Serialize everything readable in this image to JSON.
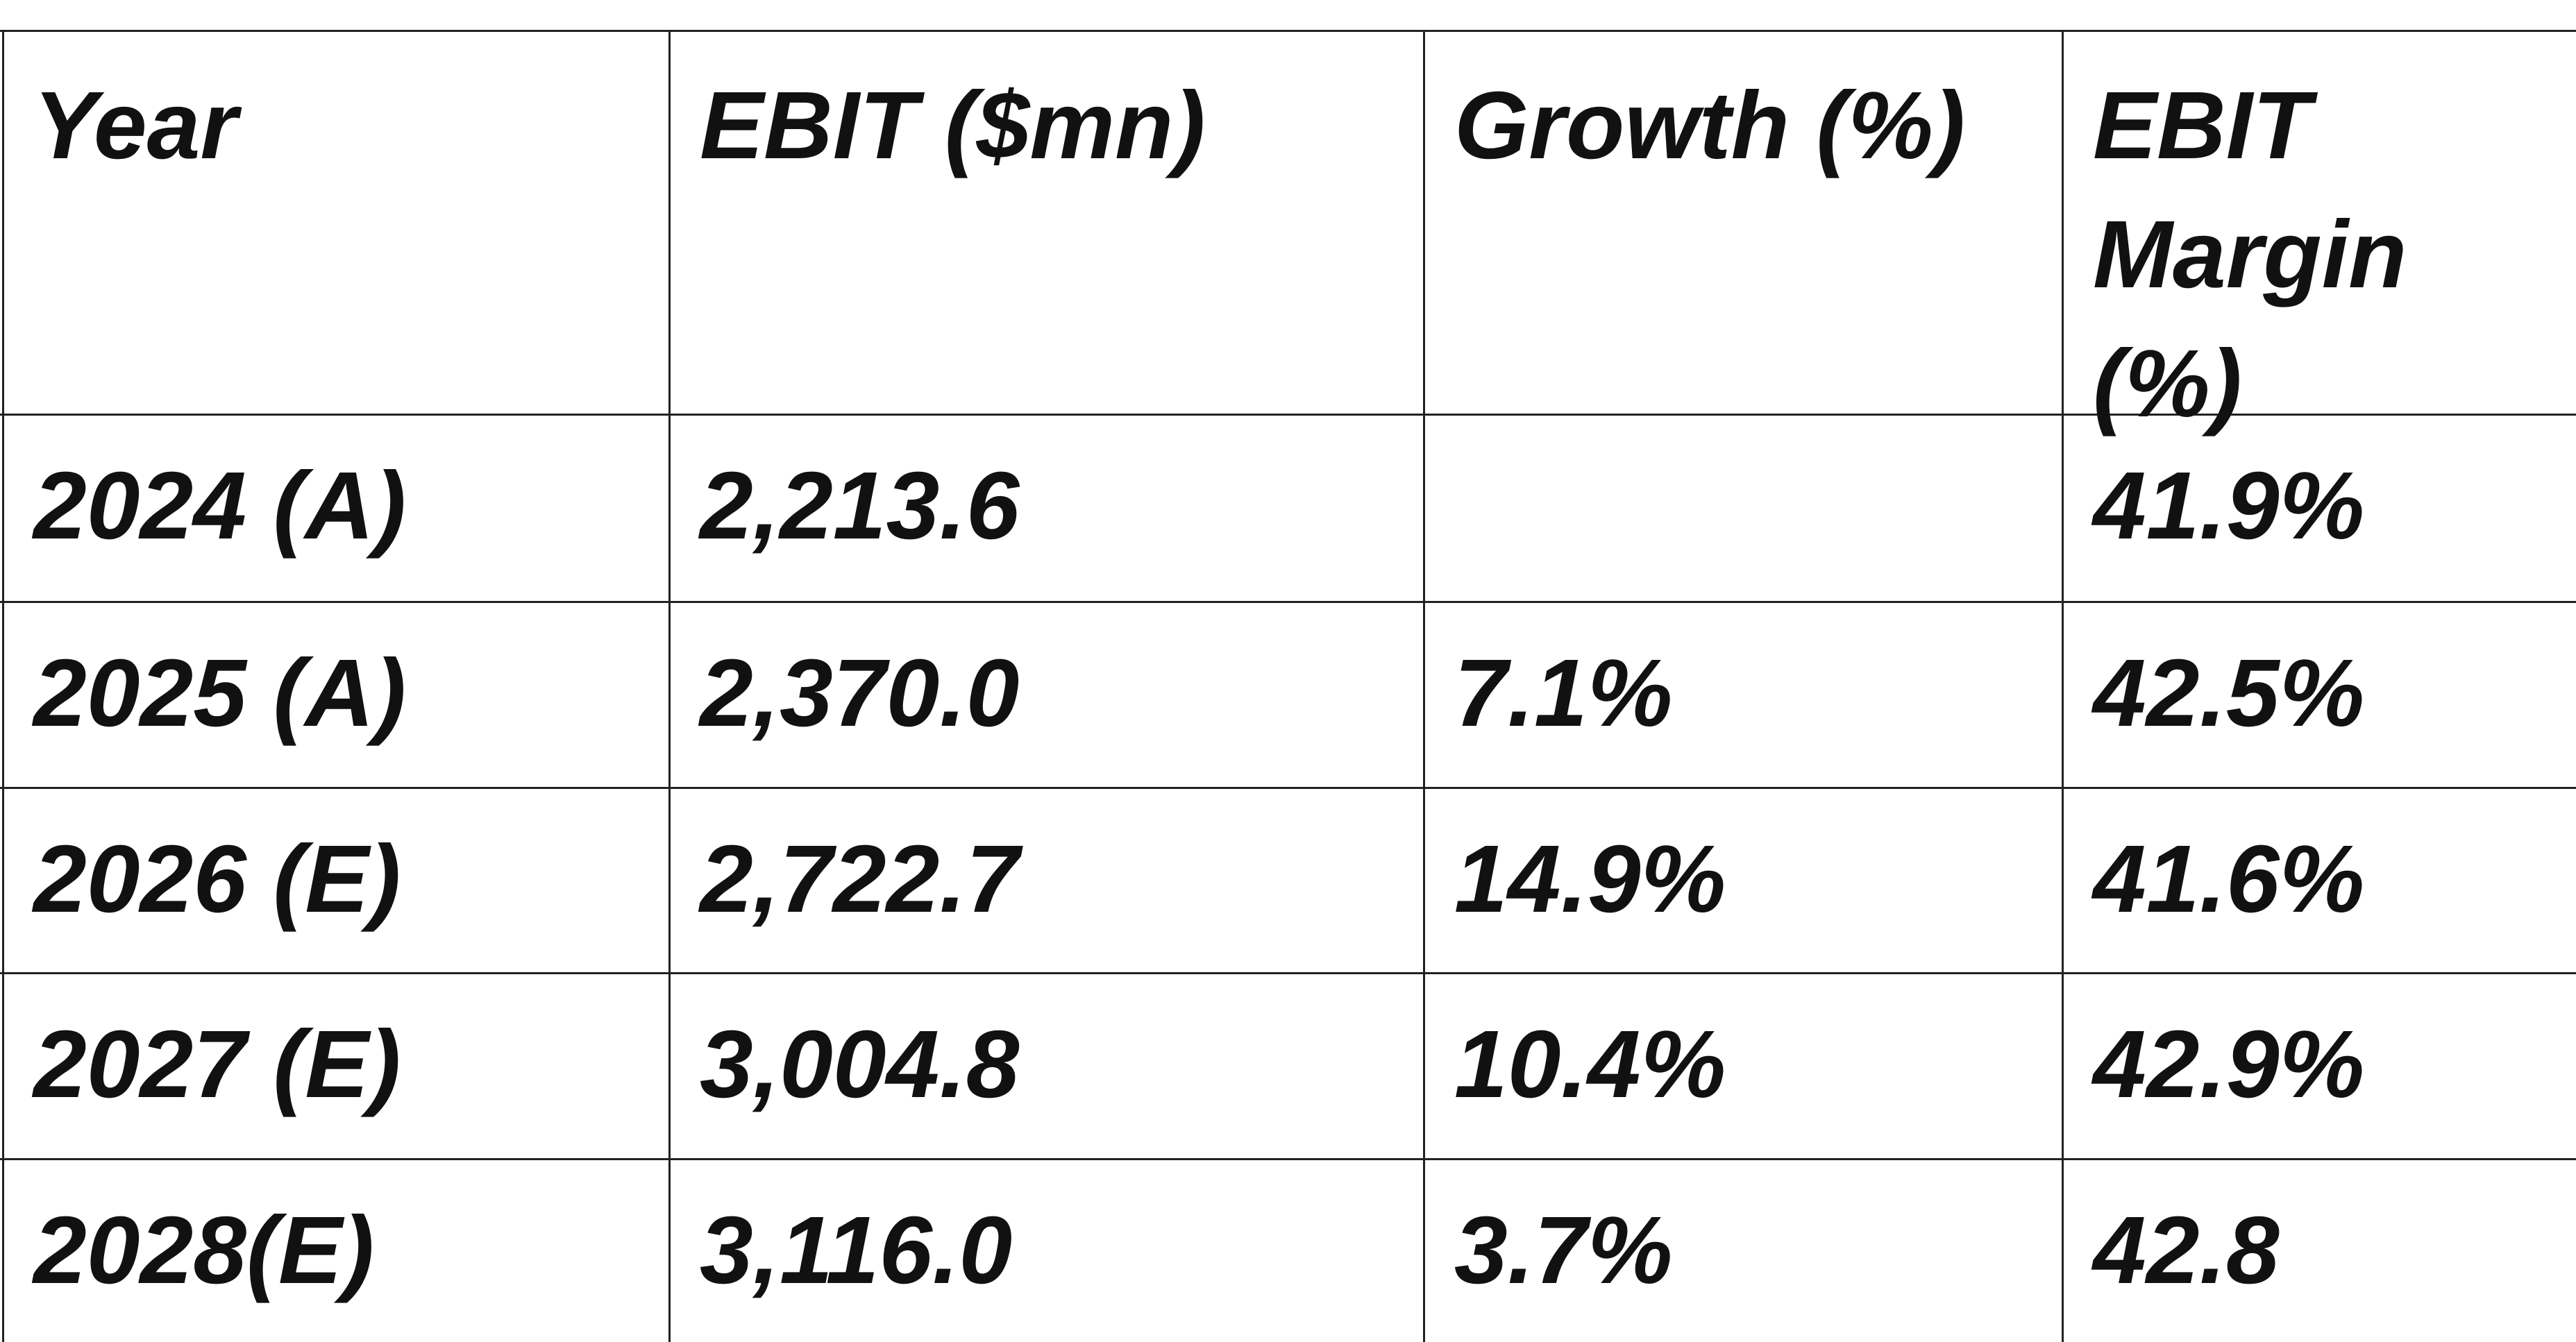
{
  "table": {
    "header": [
      "Year",
      "EBIT ($mn)",
      "Growth (%)",
      "EBIT Margin (%)"
    ],
    "rows": [
      [
        "2024 (A)",
        "2,213.6",
        null,
        "41.9%"
      ],
      [
        "2025 (A)",
        "2,370.0",
        "7.1%",
        "42.5%"
      ],
      [
        "2026 (E)",
        "2,722.7",
        "14.9%",
        "41.6%"
      ],
      [
        "2027 (E)",
        "3,004.8",
        "10.4%",
        "42.9%"
      ],
      [
        "2028(E)",
        "3,116.0",
        "3.7%",
        "42.8"
      ]
    ]
  }
}
